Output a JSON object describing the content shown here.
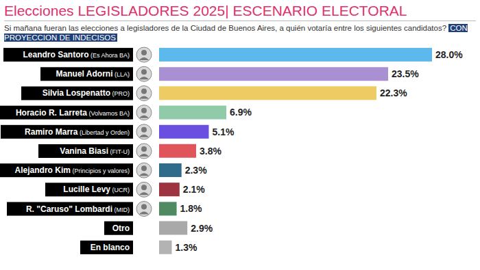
{
  "chart_data": {
    "type": "bar",
    "orientation": "horizontal",
    "title": "Elecciones LEGISLADORES 2025| ESCENARIO ELECTORAL",
    "subtitle": "Si mañana fueran las elecciones a legisladores de la Ciudad de Buenos Aires, a quién votaría entre los siguientes candidatos?",
    "annotation": "CON PROYECCION DE INDECISOS",
    "categories": [
      "Leandro Santoro (Es Ahora BA)",
      "Manuel Adorni (LLA)",
      "Silvia Lospenatto (PRO)",
      "Horacio R. Larreta (Volvamos BA)",
      "Ramiro Marra (Libertad y Orden)",
      "Vanina Biasi (FIT-U)",
      "Alejandro Kim (Principios y valores)",
      "Lucille Levy (UCR)",
      "R. \"Caruso\" Lombardi (MID)",
      "Otro",
      "En blanco"
    ],
    "values": [
      28.0,
      23.5,
      22.3,
      6.9,
      5.1,
      3.8,
      2.3,
      2.1,
      1.8,
      2.9,
      1.3
    ],
    "value_labels": [
      "28.0%",
      "23.5%",
      "22.3%",
      "6.9%",
      "5.1%",
      "3.8%",
      "2.3%",
      "2.1%",
      "1.8%",
      "2.9%",
      "1.3%"
    ],
    "colors": [
      "#5db8ec",
      "#a990d2",
      "#efcb63",
      "#8fcaa9",
      "#6a4fe0",
      "#e0555c",
      "#2f6b8a",
      "#9e343f",
      "#4f8a62",
      "#a9a9a9",
      "#b3b3b3"
    ],
    "data_labels": true,
    "tick_labels": "y",
    "grid": false
  }
}
